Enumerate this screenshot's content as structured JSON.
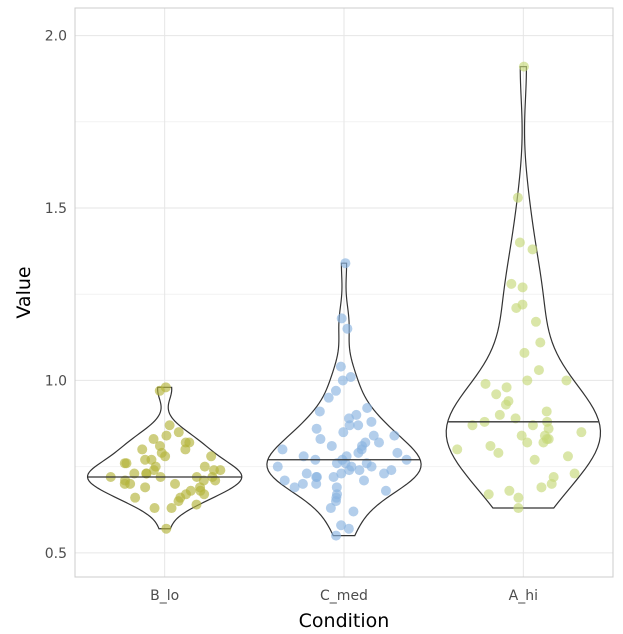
{
  "chart_data": {
    "type": "violin",
    "xlabel": "Condition",
    "ylabel": "Value",
    "ylim": [
      0.43,
      2.08
    ],
    "yticks": [
      0.5,
      1.0,
      1.5,
      2.0
    ],
    "ytick_labels": [
      "0.5",
      "1.0",
      "1.5",
      "2.0"
    ],
    "categories": [
      "B_lo",
      "C_med",
      "A_hi"
    ],
    "grid": true,
    "legend": "none",
    "groups": [
      {
        "category": "B_lo",
        "color": "#b4b43a",
        "median": 0.72,
        "min": 0.57,
        "max": 0.98,
        "points": [
          0.57,
          0.63,
          0.63,
          0.64,
          0.65,
          0.66,
          0.66,
          0.67,
          0.67,
          0.68,
          0.68,
          0.69,
          0.69,
          0.7,
          0.7,
          0.7,
          0.71,
          0.71,
          0.71,
          0.72,
          0.72,
          0.72,
          0.72,
          0.73,
          0.73,
          0.73,
          0.74,
          0.74,
          0.74,
          0.75,
          0.75,
          0.76,
          0.76,
          0.77,
          0.77,
          0.78,
          0.78,
          0.79,
          0.8,
          0.8,
          0.81,
          0.82,
          0.82,
          0.83,
          0.84,
          0.85,
          0.87,
          0.97,
          0.98
        ]
      },
      {
        "category": "C_med",
        "color": "#8ab3e0",
        "median": 0.77,
        "min": 0.55,
        "max": 1.34,
        "points": [
          0.55,
          0.57,
          0.58,
          0.62,
          0.63,
          0.65,
          0.66,
          0.67,
          0.68,
          0.69,
          0.69,
          0.7,
          0.7,
          0.71,
          0.71,
          0.72,
          0.72,
          0.72,
          0.73,
          0.73,
          0.73,
          0.74,
          0.74,
          0.74,
          0.75,
          0.75,
          0.75,
          0.76,
          0.76,
          0.76,
          0.77,
          0.77,
          0.77,
          0.78,
          0.78,
          0.79,
          0.79,
          0.8,
          0.8,
          0.81,
          0.81,
          0.82,
          0.82,
          0.83,
          0.84,
          0.84,
          0.85,
          0.86,
          0.87,
          0.87,
          0.88,
          0.89,
          0.9,
          0.91,
          0.92,
          0.95,
          0.97,
          1.0,
          1.01,
          1.04,
          1.15,
          1.18,
          1.34
        ]
      },
      {
        "category": "A_hi",
        "color": "#c6d97a",
        "median": 0.88,
        "min": 0.63,
        "max": 1.91,
        "points": [
          0.63,
          0.66,
          0.67,
          0.68,
          0.69,
          0.7,
          0.72,
          0.73,
          0.77,
          0.78,
          0.79,
          0.8,
          0.81,
          0.82,
          0.82,
          0.83,
          0.83,
          0.84,
          0.84,
          0.85,
          0.86,
          0.87,
          0.87,
          0.88,
          0.88,
          0.89,
          0.9,
          0.91,
          0.93,
          0.94,
          0.96,
          0.98,
          0.99,
          1.0,
          1.0,
          1.03,
          1.08,
          1.11,
          1.17,
          1.21,
          1.22,
          1.27,
          1.28,
          1.38,
          1.4,
          1.53,
          1.91
        ]
      }
    ]
  }
}
